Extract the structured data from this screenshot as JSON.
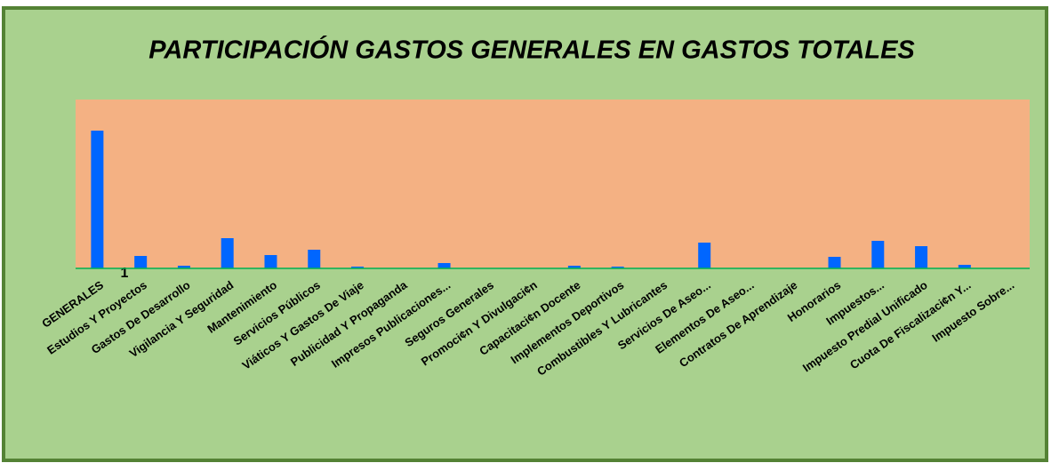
{
  "chart_data": {
    "type": "bar",
    "title": "PARTICIPACIÓN GASTOS GENERALES EN GASTOS TOTALES",
    "annotation": "1",
    "categories": [
      "GENERALES",
      "Estudios Y Proyectos",
      "Gastos De Desarrollo",
      "Vigilancia Y Seguridad",
      "Mantenimiento",
      "Servicios Públicos",
      "Viáticos Y Gastos De Viaje",
      "Publicidad Y Propaganda",
      "Impresos  Publicaciones...",
      "Seguros Generales",
      "Promoci¢n Y Divulgaci¢n",
      "Capacitaci¢n Docente",
      "Implementos Deportivos",
      "Combustibles Y Lubricantes",
      "Servicios De Aseo...",
      "Elementos De Aseo...",
      "Contratos De Aprendizaje",
      "Honorarios",
      "Impuestos...",
      "Impuesto Predial Unificado",
      "Cuota De Fiscalizaci¢n Y...",
      "Impuesto Sobre..."
    ],
    "values": [
      155,
      14,
      3,
      34,
      15,
      21,
      2,
      0,
      6,
      0,
      0,
      3,
      2,
      0,
      29,
      0,
      0,
      13,
      31,
      25,
      4,
      0
    ],
    "color": "#0066ff",
    "ylim": [
      0,
      190
    ]
  }
}
